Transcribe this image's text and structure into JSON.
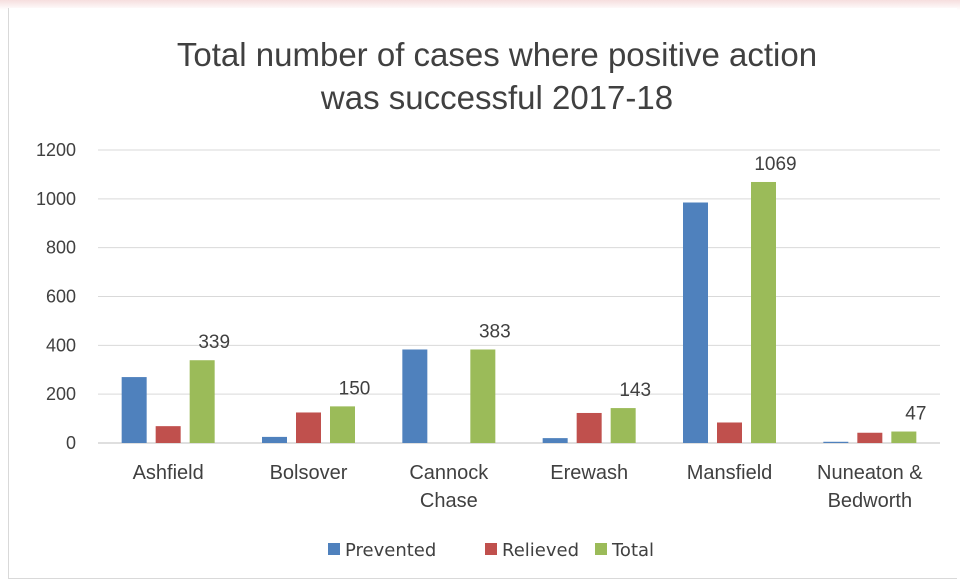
{
  "chart_data": {
    "type": "bar",
    "title": "Total number of cases where positive action was successful 2017-18",
    "title_lines": [
      "Total number of cases where positive action",
      "was successful 2017-18"
    ],
    "categories": [
      "Ashfield",
      "Bolsover",
      "Cannock Chase",
      "Erewash",
      "Mansfield",
      "Nuneaton & Bedworth"
    ],
    "category_lines": [
      [
        "Ashfield"
      ],
      [
        "Bolsover"
      ],
      [
        "Cannock",
        "Chase"
      ],
      [
        "Erewash"
      ],
      [
        "Mansfield"
      ],
      [
        "Nuneaton &",
        "Bedworth"
      ]
    ],
    "series": [
      {
        "name": "Prevented",
        "color": "#4f81bd",
        "values": [
          270,
          25,
          383,
          20,
          985,
          5
        ]
      },
      {
        "name": "Relieved",
        "color": "#c0504d",
        "values": [
          69,
          125,
          0,
          123,
          84,
          42
        ]
      },
      {
        "name": "Total",
        "color": "#9bbb59",
        "values": [
          339,
          150,
          383,
          143,
          1069,
          47
        ]
      }
    ],
    "data_labels": {
      "series": "Total",
      "values": [
        "339",
        "150",
        "383",
        "143",
        "1069",
        "47"
      ]
    },
    "ylim": [
      0,
      1200
    ],
    "yticks": [
      "0",
      "200",
      "400",
      "600",
      "800",
      "1000",
      "1200"
    ],
    "grid": true,
    "legend_position": "bottom",
    "xlabel": "",
    "ylabel": ""
  }
}
